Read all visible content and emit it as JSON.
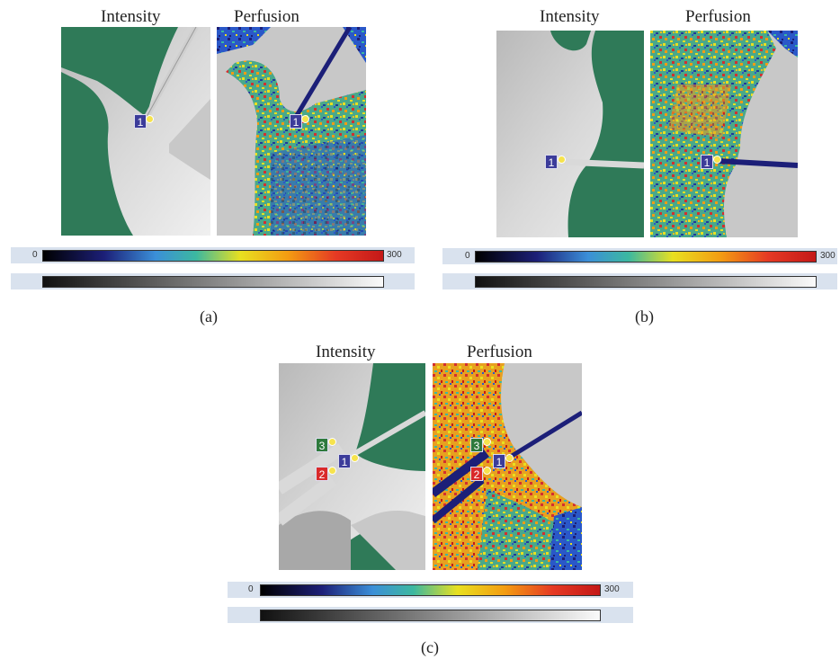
{
  "panels": [
    {
      "caption": "(a)",
      "intensity_title": "Intensity",
      "perfusion_title": "Perfusion",
      "markers": [
        "1"
      ],
      "scale_min": "0",
      "scale_max": "300"
    },
    {
      "caption": "(b)",
      "intensity_title": "Intensity",
      "perfusion_title": "Perfusion",
      "markers": [
        "1"
      ],
      "scale_min": "0",
      "scale_max": "300"
    },
    {
      "caption": "(c)",
      "intensity_title": "Intensity",
      "perfusion_title": "Perfusion",
      "markers": [
        "1",
        "2",
        "3"
      ],
      "scale_min": "0",
      "scale_max": "300"
    }
  ],
  "colors": {
    "background_green": "#2f7a58",
    "perfusion_low": "#1a237e",
    "perfusion_mid": "#e8e020",
    "perfusion_high": "#d32f2f",
    "strip_bg": "#d9e2ee",
    "marker_blue": "#3c3c9a",
    "marker_red": "#d92a2a",
    "marker_green": "#2e7a3c"
  }
}
